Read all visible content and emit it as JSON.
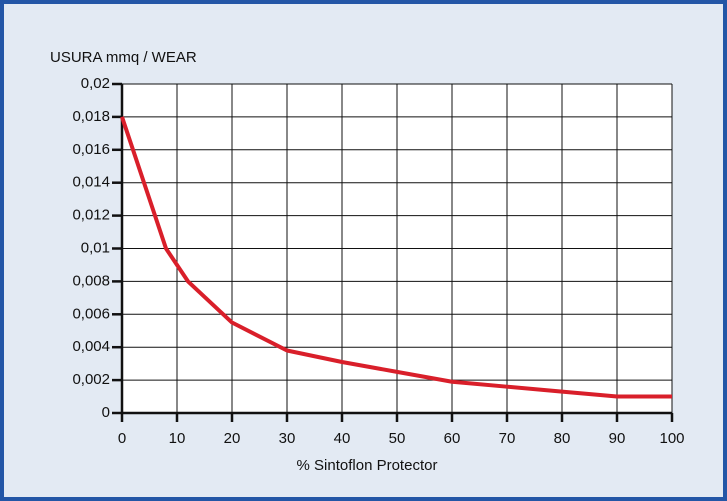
{
  "chart_data": {
    "type": "line",
    "ylabel": "USURA mmq / WEAR",
    "xlabel": "% Sintoflon Protector",
    "x": [
      0,
      8,
      12,
      20,
      30,
      40,
      50,
      60,
      70,
      80,
      90,
      100
    ],
    "series": [
      {
        "color": "#d91f2a",
        "values": [
          0.018,
          0.01,
          0.008,
          0.0055,
          0.0038,
          0.0031,
          0.0025,
          0.0019,
          0.0016,
          0.0013,
          0.001,
          0.001
        ]
      }
    ],
    "xlim": [
      0,
      100
    ],
    "xticks": [
      0,
      10,
      20,
      30,
      40,
      50,
      60,
      70,
      80,
      90,
      100
    ],
    "ylim": [
      0,
      0.02
    ],
    "yticks": [
      0,
      {
        "value": 0.002,
        "label": "0,002"
      },
      {
        "value": 0.004,
        "label": "0,004"
      },
      {
        "value": 0.006,
        "label": "0,006"
      },
      {
        "value": 0.008,
        "label": "0,008"
      },
      {
        "value": 0.01,
        "label": "0,01"
      },
      {
        "value": 0.012,
        "label": "0,012"
      },
      {
        "value": 0.014,
        "label": "0,014"
      },
      {
        "value": 0.016,
        "label": "0,016"
      },
      {
        "value": 0.018,
        "label": "0,018"
      },
      {
        "value": 0.02,
        "label": "0,02"
      }
    ],
    "grid": true
  }
}
